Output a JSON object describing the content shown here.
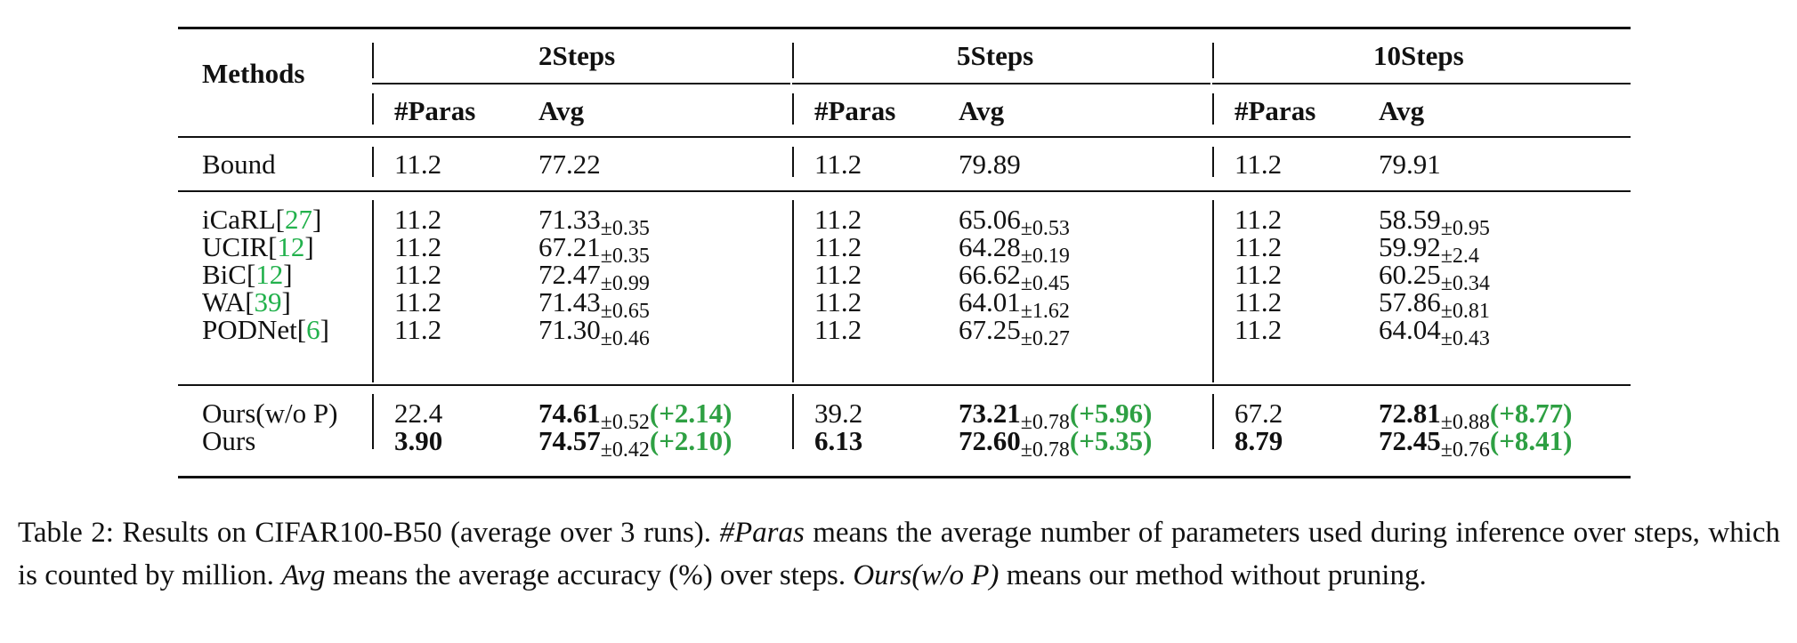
{
  "table": {
    "method_header": "Methods",
    "groups": [
      {
        "label": "2Steps",
        "sub": [
          "#Paras",
          "Avg"
        ]
      },
      {
        "label": "5Steps",
        "sub": [
          "#Paras",
          "Avg"
        ]
      },
      {
        "label": "10Steps",
        "sub": [
          "#Paras",
          "Avg"
        ]
      }
    ],
    "bound": {
      "method": "Bound",
      "cells": [
        "11.2",
        "77.22",
        "11.2",
        "79.89",
        "11.2",
        "79.91"
      ]
    },
    "baselines": [
      {
        "method": "iCaRL",
        "cite": "27",
        "cells": [
          [
            "11.2",
            "",
            ""
          ],
          [
            "71.33",
            "±0.35",
            ""
          ],
          [
            "11.2",
            "",
            ""
          ],
          [
            "65.06",
            "±0.53",
            ""
          ],
          [
            "11.2",
            "",
            ""
          ],
          [
            "58.59",
            "±0.95",
            ""
          ]
        ]
      },
      {
        "method": "UCIR",
        "cite": "12",
        "cells": [
          [
            "11.2",
            "",
            ""
          ],
          [
            "67.21",
            "±0.35",
            ""
          ],
          [
            "11.2",
            "",
            ""
          ],
          [
            "64.28",
            "±0.19",
            ""
          ],
          [
            "11.2",
            "",
            ""
          ],
          [
            "59.92",
            "±2.4",
            ""
          ]
        ]
      },
      {
        "method": "BiC",
        "cite": "12",
        "cells": [
          [
            "11.2",
            "",
            ""
          ],
          [
            "72.47",
            "±0.99",
            ""
          ],
          [
            "11.2",
            "",
            ""
          ],
          [
            "66.62",
            "±0.45",
            ""
          ],
          [
            "11.2",
            "",
            ""
          ],
          [
            "60.25",
            "±0.34",
            ""
          ]
        ]
      },
      {
        "method": "WA",
        "cite": "39",
        "cells": [
          [
            "11.2",
            "",
            ""
          ],
          [
            "71.43",
            "±0.65",
            ""
          ],
          [
            "11.2",
            "",
            ""
          ],
          [
            "64.01",
            "±1.62",
            ""
          ],
          [
            "11.2",
            "",
            ""
          ],
          [
            "57.86",
            "±0.81",
            ""
          ]
        ]
      },
      {
        "method": "PODNet",
        "cite": "6",
        "cells": [
          [
            "11.2",
            "",
            ""
          ],
          [
            "71.30",
            "±0.46",
            ""
          ],
          [
            "11.2",
            "",
            ""
          ],
          [
            "67.25",
            "±0.27",
            ""
          ],
          [
            "11.2",
            "",
            ""
          ],
          [
            "64.04",
            "±0.43",
            ""
          ]
        ]
      }
    ],
    "ours": [
      {
        "method": "Ours(w/o P)",
        "cells": [
          [
            "22.4",
            "",
            ""
          ],
          [
            "74.61",
            "±0.52",
            "(+2.14)"
          ],
          [
            "39.2",
            "",
            ""
          ],
          [
            "73.21",
            "±0.78",
            "(+5.96)"
          ],
          [
            "67.2",
            "",
            ""
          ],
          [
            "72.81",
            "±0.88",
            "(+8.77)"
          ]
        ]
      },
      {
        "method": "Ours",
        "cells": [
          [
            "3.90",
            "",
            ""
          ],
          [
            "74.57",
            "±0.42",
            "(+2.10)"
          ],
          [
            "6.13",
            "",
            ""
          ],
          [
            "72.60",
            "±0.78",
            "(+5.35)"
          ],
          [
            "8.79",
            "",
            ""
          ],
          [
            "72.45",
            "±0.76",
            "(+8.41)"
          ]
        ]
      }
    ]
  },
  "caption": {
    "t1": "Table 2: Results on CIFAR100-B50 (average over 3 runs). ",
    "i1": "#Paras",
    "t2": " means the average number of parameters used during inference over steps, which is counted by million. ",
    "i2": "Avg",
    "t3": " means the average accuracy (%) over steps. ",
    "i3": "Ours(w/o P)",
    "t4": " means our method without pruning."
  },
  "colors": {
    "delta": "#2ea043",
    "citation": "#22b14c"
  }
}
